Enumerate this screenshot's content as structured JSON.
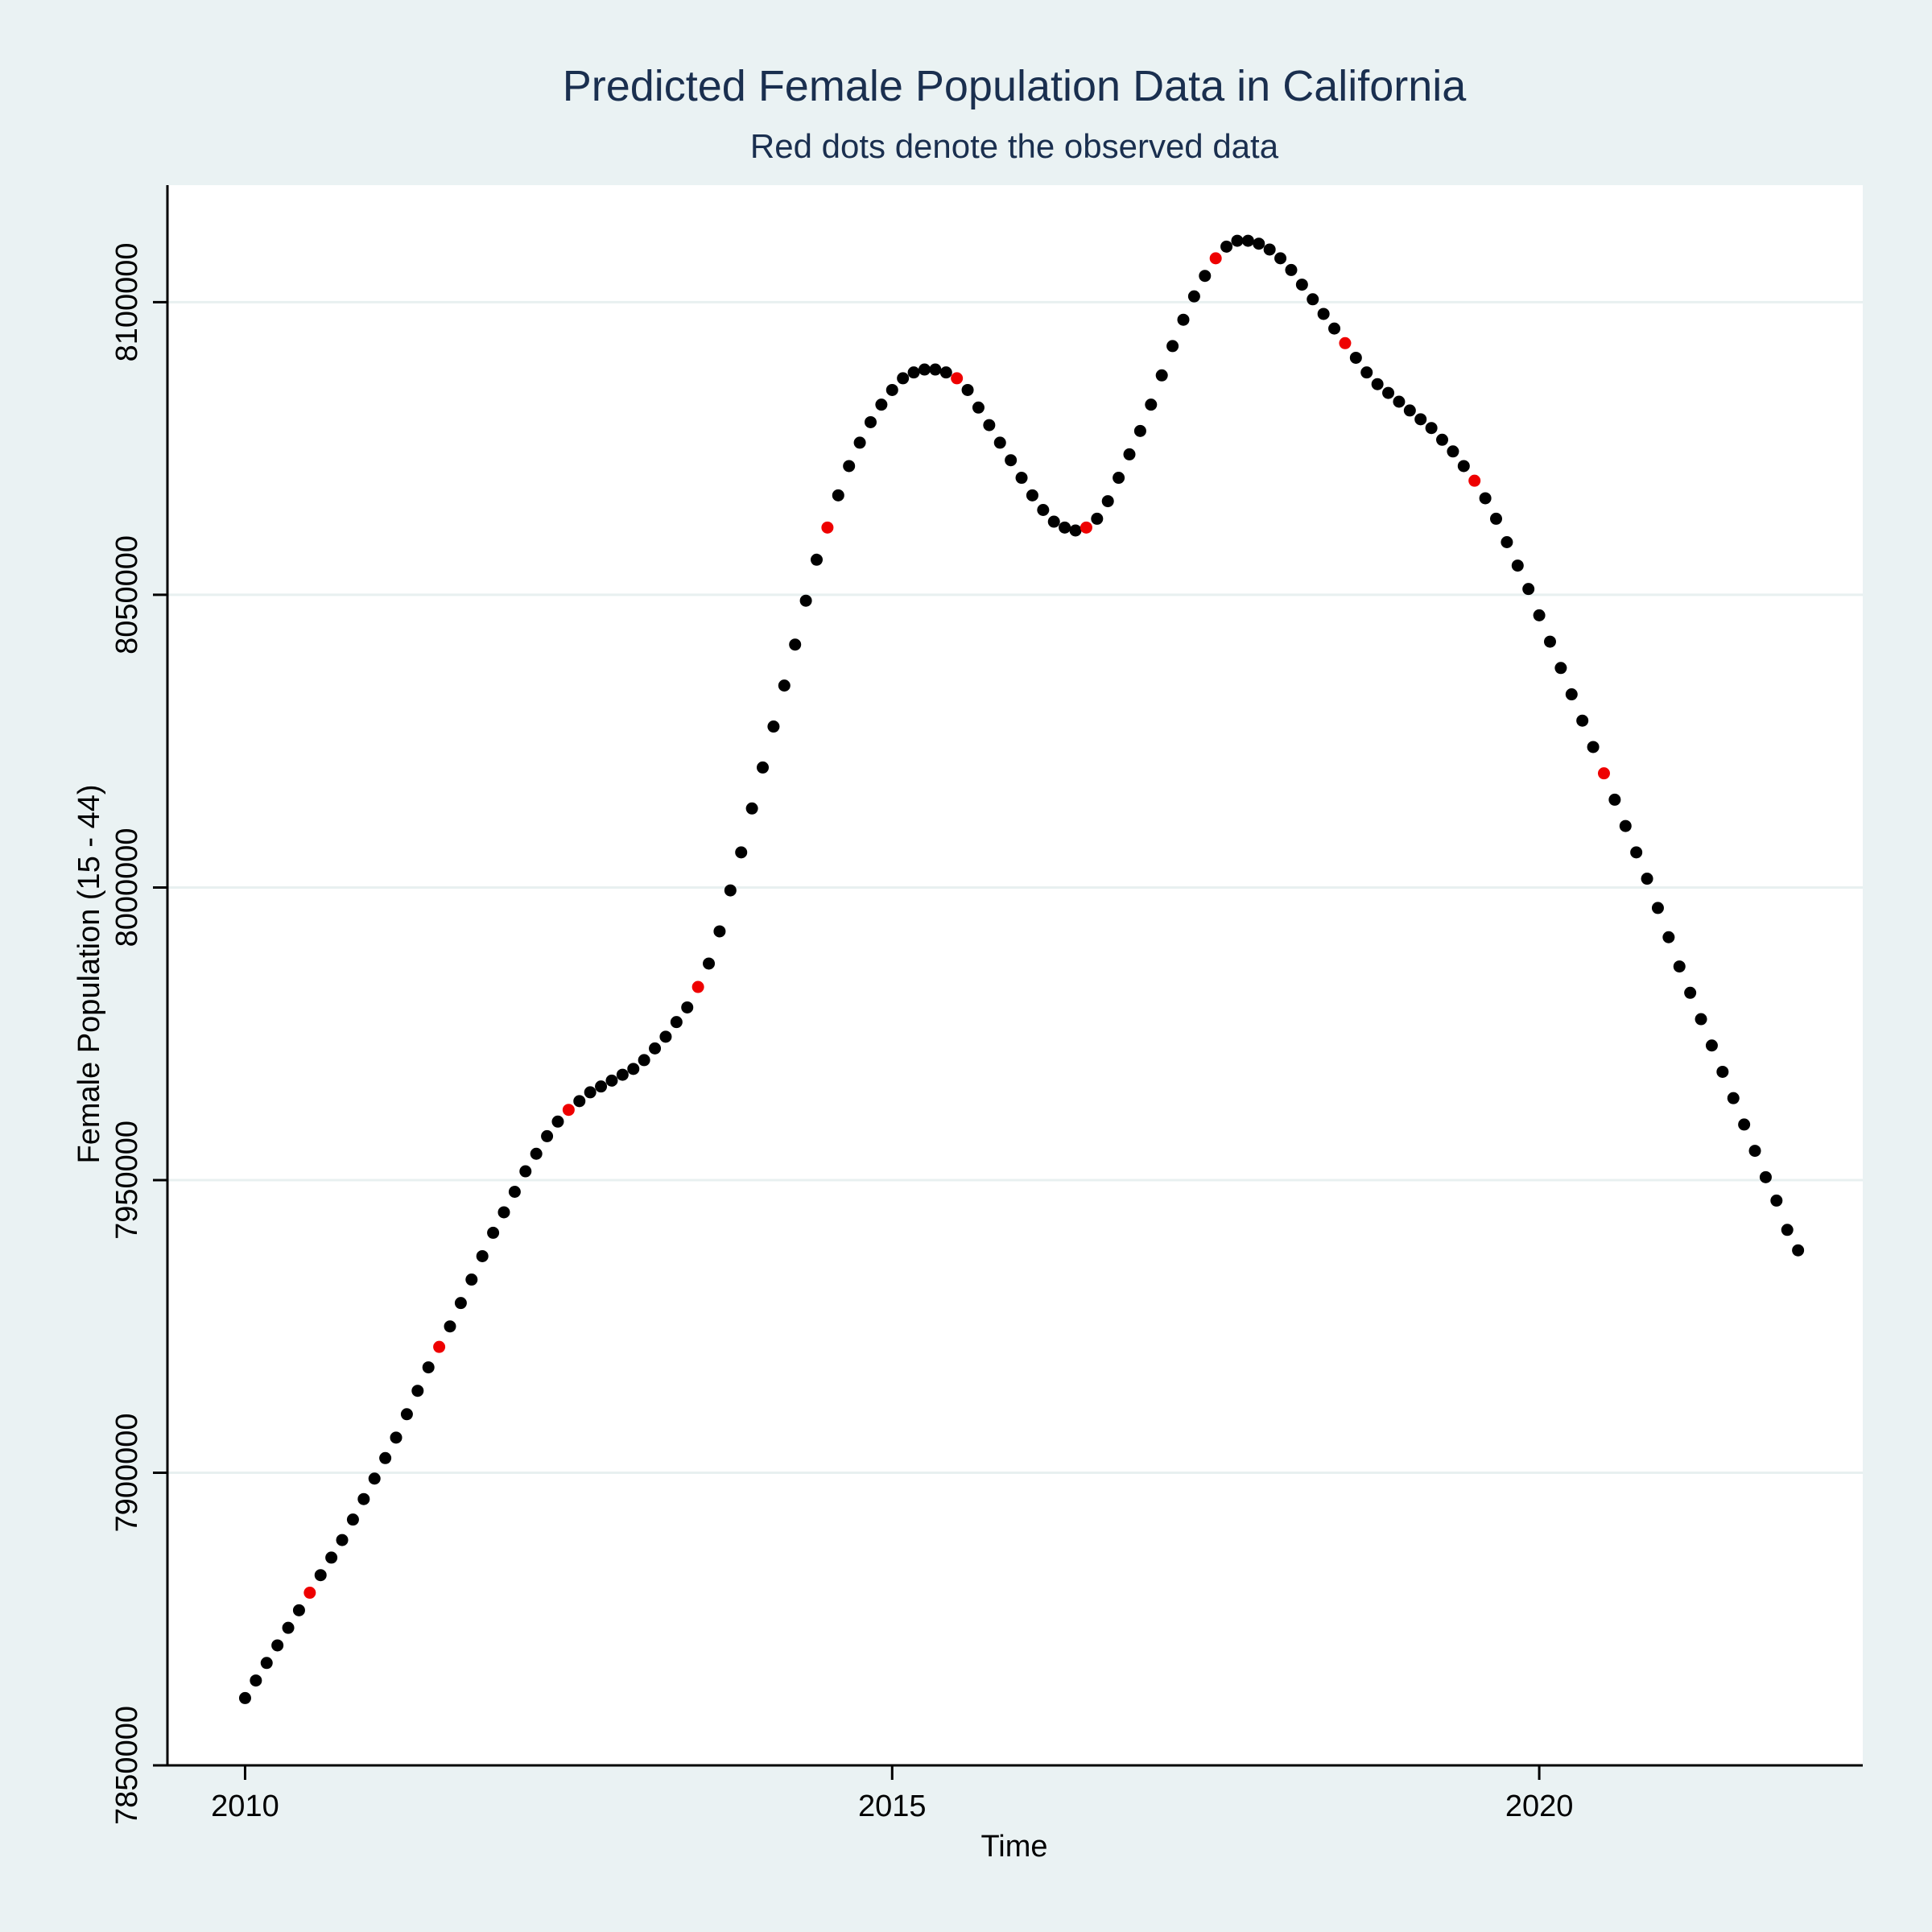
{
  "chart_data": {
    "type": "scatter",
    "title": "Predicted Female Population Data in California",
    "subtitle": "Red dots denote the observed data",
    "xlabel": "Time",
    "ylabel": "Female Population (15 - 44)",
    "xlim": [
      2009.4,
      2022.5
    ],
    "ylim": [
      7850000,
      8120000
    ],
    "x_ticks": [
      2010,
      2015,
      2020
    ],
    "y_ticks": [
      7850000,
      7900000,
      7950000,
      8000000,
      8050000,
      8100000
    ],
    "grid": "horizontal",
    "start_year": 2010,
    "step_years": 0.08333333,
    "colors": {
      "predicted": "#000000",
      "observed": "#ee0000",
      "grid": "#e8f0f0"
    },
    "observed_indices": [
      6,
      18,
      30,
      42,
      54,
      66,
      78,
      90,
      102,
      114,
      126
    ],
    "series": [
      {
        "values": [
          7861500,
          7864500,
          7867500,
          7870500,
          7873500,
          7876500,
          7879500,
          7882500,
          7885500,
          7888500,
          7892000,
          7895500,
          7899000,
          7902500,
          7906000,
          7910000,
          7914000,
          7918000,
          7921500,
          7925000,
          7929000,
          7933000,
          7937000,
          7941000,
          7944500,
          7948000,
          7951500,
          7954500,
          7957500,
          7960000,
          7962000,
          7963500,
          7965000,
          7966000,
          7967000,
          7968000,
          7969000,
          7970500,
          7972500,
          7974500,
          7977000,
          7979500,
          7983000,
          7987000,
          7992500,
          7999500,
          8006000,
          8013500,
          8020500,
          8027500,
          8034500,
          8041500,
          8049000,
          8056000,
          8061500,
          8067000,
          8072000,
          8076000,
          8079500,
          8082500,
          8085000,
          8087000,
          8088000,
          8088500,
          8088500,
          8088000,
          8087000,
          8085000,
          8082000,
          8079000,
          8076000,
          8073000,
          8070000,
          8067000,
          8064500,
          8062500,
          8061500,
          8061000,
          8061500,
          8063000,
          8066000,
          8070000,
          8074000,
          8078000,
          8082500,
          8087500,
          8092500,
          8097000,
          8101000,
          8104500,
          8107500,
          8109500,
          8110500,
          8110500,
          8110000,
          8109000,
          8107500,
          8105500,
          8103000,
          8100500,
          8098000,
          8095500,
          8093000,
          8090500,
          8088000,
          8086000,
          8084500,
          8083000,
          8081500,
          8080000,
          8078500,
          8076500,
          8074500,
          8072000,
          8069500,
          8066500,
          8063000,
          8059000,
          8055000,
          8051000,
          8046500,
          8042000,
          8037500,
          8033000,
          8028500,
          8024000,
          8019500,
          8015000,
          8010500,
          8006000,
          8001500,
          7996500,
          7991500,
          7986500,
          7982000,
          7977500,
          7973000,
          7968500,
          7964000,
          7959500,
          7955000,
          7950500,
          7946500,
          7941500,
          7938000
        ]
      }
    ]
  }
}
